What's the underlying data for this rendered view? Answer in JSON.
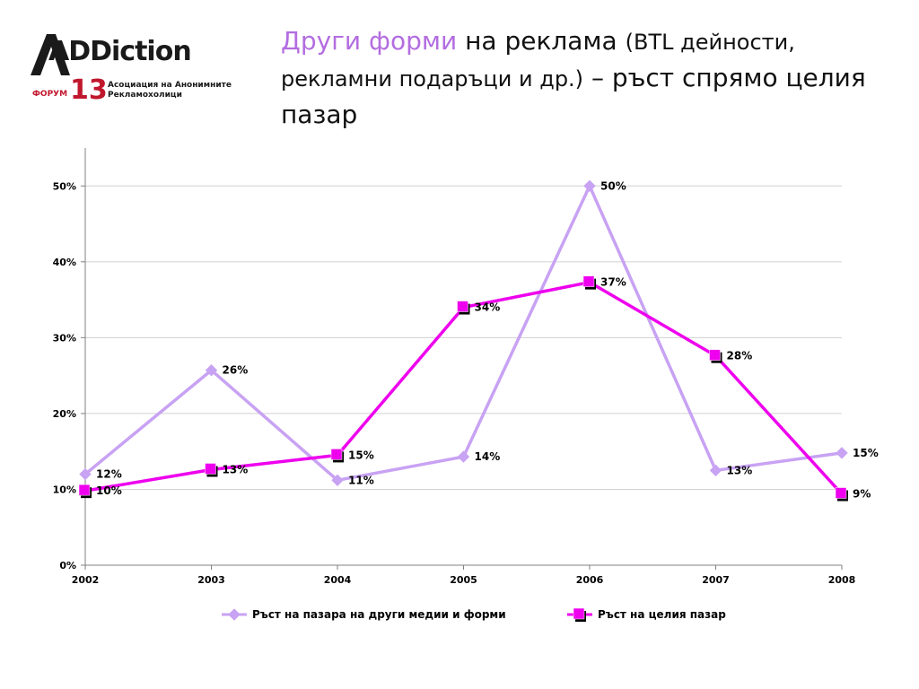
{
  "logo": {
    "wordmark": "ADDiction",
    "forum": "ФОРУМ",
    "number": "13",
    "association": "Асоциация на Анонимните Рекламохолици"
  },
  "title": {
    "accent": "Други форми",
    "part1": " на реклама ",
    "part2": "(BTL дейности, рекламни подаръци и др.)",
    "part3": " – ръст спрямо целия пазар"
  },
  "chart_data": {
    "type": "line",
    "x": [
      "2002",
      "2003",
      "2004",
      "2005",
      "2006",
      "2007",
      "2008"
    ],
    "ylim": [
      0,
      55
    ],
    "yticks": [
      0,
      10,
      20,
      30,
      40,
      50
    ],
    "ytick_labels": [
      "0%",
      "10%",
      "20%",
      "30%",
      "40%",
      "50%"
    ],
    "grid": true,
    "legend": "bottom",
    "series": [
      {
        "name": "Ръст на пазара на други медии и форми",
        "values": [
          12,
          25.7,
          11.2,
          14.3,
          50,
          12.5,
          14.8
        ],
        "labels": [
          "12%",
          "26%",
          "11%",
          "14%",
          "50%",
          "13%",
          "15%"
        ],
        "color": "#c8a2f3",
        "marker": "diamond"
      },
      {
        "name": "Ръст на целия пазар",
        "values": [
          9.8,
          12.6,
          14.5,
          34,
          37.3,
          27.6,
          9.4
        ],
        "labels": [
          "10%",
          "13%",
          "15%",
          "34%",
          "37%",
          "28%",
          "9%"
        ],
        "color": "#ee00ee",
        "marker": "square"
      }
    ]
  }
}
